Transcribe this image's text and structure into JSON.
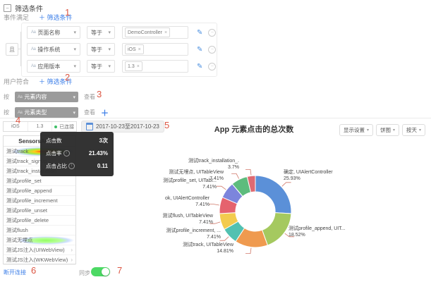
{
  "annotations": [
    "1",
    "2",
    "3",
    "4",
    "5",
    "6",
    "7"
  ],
  "icons": {
    "caret_down": "▾",
    "close": "×",
    "pencil": "✎",
    "circle_minus": "−",
    "chevron_right": "›",
    "collapse_minus": "−",
    "info": "i",
    "string_type": "Aa",
    "plus": "＋"
  },
  "filter_section": {
    "title": "筛选条件",
    "event_row": {
      "label": "事件满足",
      "add_link": "＋ 筛选条件"
    },
    "and_label": "且",
    "rows": [
      {
        "field": "页面名称",
        "op": "等于",
        "value": "DemoController"
      },
      {
        "field": "操作系统",
        "op": "等于",
        "value": "iOS"
      },
      {
        "field": "应用版本",
        "op": "等于",
        "value": "1.3"
      }
    ],
    "user_row": {
      "label": "用户符合",
      "add_link": "＋ 筛选条件"
    }
  },
  "group_by": {
    "rows": [
      {
        "prefix": "按",
        "value": "元素内容",
        "suffix": "查看",
        "add": ""
      },
      {
        "prefix": "按",
        "value": "元素类型",
        "suffix": "查看",
        "add": "＋"
      }
    ]
  },
  "device_panel": {
    "segments": [
      "iOS",
      "1.3",
      "已连接"
    ],
    "connected_dot_color": "#3fbf67",
    "app_name": "SensorsAnaly...",
    "items": [
      {
        "label": "测试track",
        "heat": "rainbow"
      },
      {
        "label": "测试track_signup"
      },
      {
        "label": "测试track_installation"
      },
      {
        "label": "测试profile_set"
      },
      {
        "label": "测试profile_append"
      },
      {
        "label": "测试profile_increment"
      },
      {
        "label": "测试profile_unset"
      },
      {
        "label": "测试profile_delete"
      },
      {
        "label": "测试flush"
      },
      {
        "label": "测试无埋点",
        "heat": "green"
      },
      {
        "label": "测试JS注入(UIWebView)",
        "chevron": true
      },
      {
        "label": "测试JS注入(WKWebView)",
        "chevron": true
      }
    ],
    "disconnect_link": "断开连接",
    "sync_label": "同步",
    "sync_on": true,
    "toggle_color": "#4cd964"
  },
  "date_picker": {
    "range": "2017-10-23至2017-10-23"
  },
  "tooltip": {
    "rows": [
      {
        "label": "点击数",
        "value": "3次",
        "info": false
      },
      {
        "label": "点击率",
        "value": "21.43%",
        "info": true
      },
      {
        "label": "点击占比",
        "value": "0.11",
        "info": true
      }
    ]
  },
  "chart": {
    "title": "App 元素点击的总次数",
    "buttons": [
      "显示设置",
      "饼图",
      "按天"
    ]
  },
  "chart_data": {
    "type": "pie",
    "donut": true,
    "title": "App 元素点击的总次数",
    "unit": "%",
    "start_angle_deg": 0,
    "clockwise": true,
    "label_line_color": "#d0796a",
    "slices": [
      {
        "label": "确定, UIAlertController",
        "value": 25.93,
        "color": "#5b90d8"
      },
      {
        "label": "测试profile_append, UIT...",
        "value": 18.52,
        "color": "#a5c95f"
      },
      {
        "label": "测试track, UITableView",
        "value": 14.81,
        "color": "#ef9a4f"
      },
      {
        "label": "测试profile_increment, ...",
        "value": 7.41,
        "color": "#52c1b1"
      },
      {
        "label": "测试flush, UITableView",
        "value": 7.41,
        "color": "#f3cb4e"
      },
      {
        "label": "ok, UIAlertController",
        "value": 7.41,
        "color": "#e5636e"
      },
      {
        "label": "测试profile_set, UITabl...",
        "value": 7.41,
        "color": "#7c85dc"
      },
      {
        "label": "测试无埋点, UITableView",
        "value": 7.41,
        "color": "#5dbc7d"
      },
      {
        "label": "测试track_installation_.",
        "value": 3.7,
        "color": "#df6a72"
      }
    ]
  }
}
